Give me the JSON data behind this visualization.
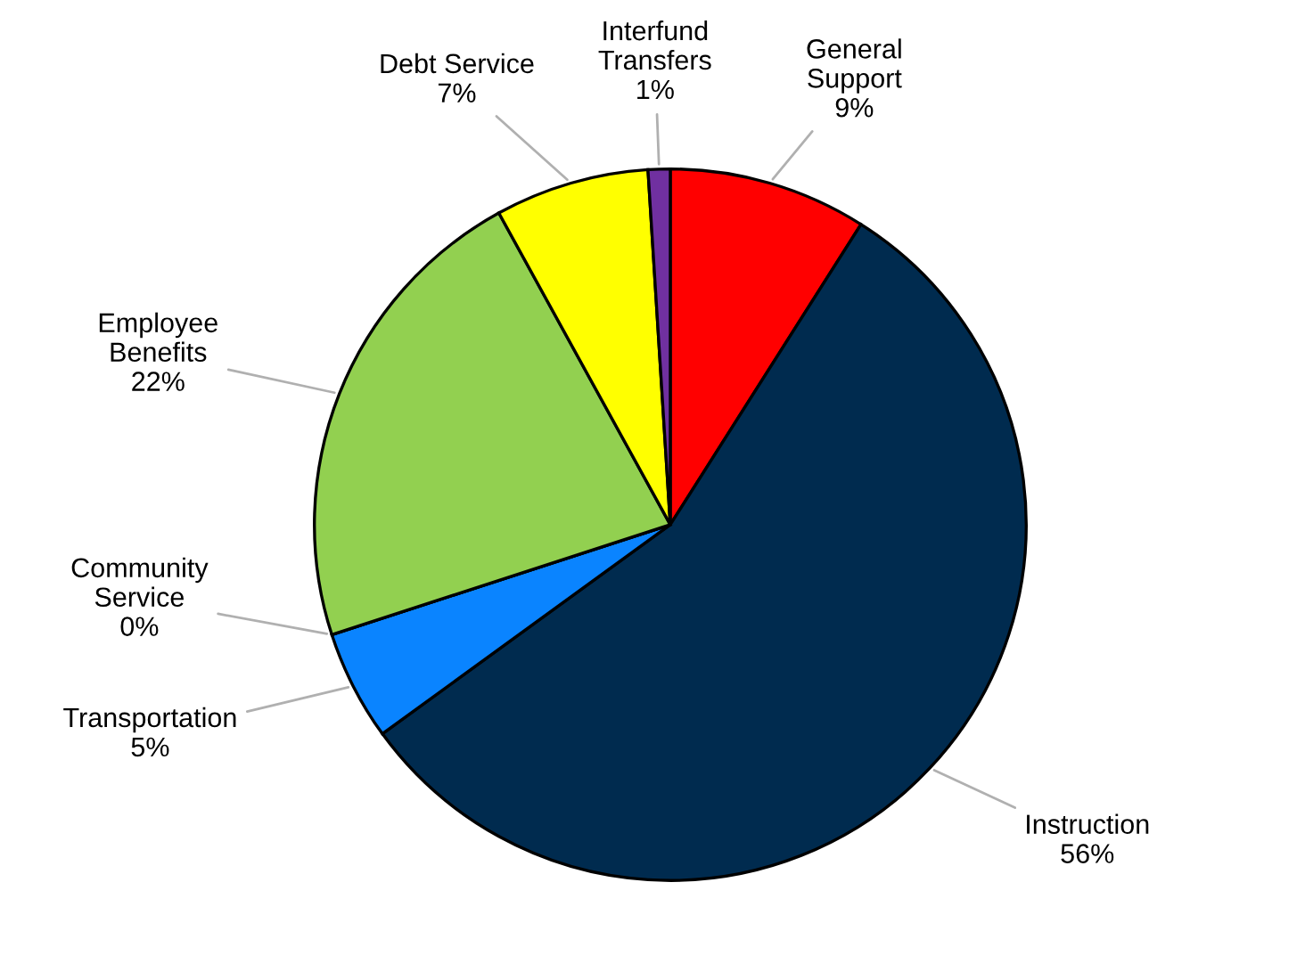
{
  "chart_data": {
    "type": "pie",
    "categories": [
      "General Support",
      "Instruction",
      "Transportation",
      "Community Service",
      "Employee Benefits",
      "Debt Service",
      "Interfund Transfers"
    ],
    "values": [
      9,
      56,
      5,
      0,
      22,
      7,
      1
    ],
    "colors": [
      "#ff0000",
      "#002b4f",
      "#0a84ff",
      "#ff9900",
      "#92d050",
      "#ffff00",
      "#7030a0"
    ],
    "value_labels": [
      "9%",
      "56%",
      "5%",
      "0%",
      "22%",
      "7%",
      "1%"
    ]
  }
}
